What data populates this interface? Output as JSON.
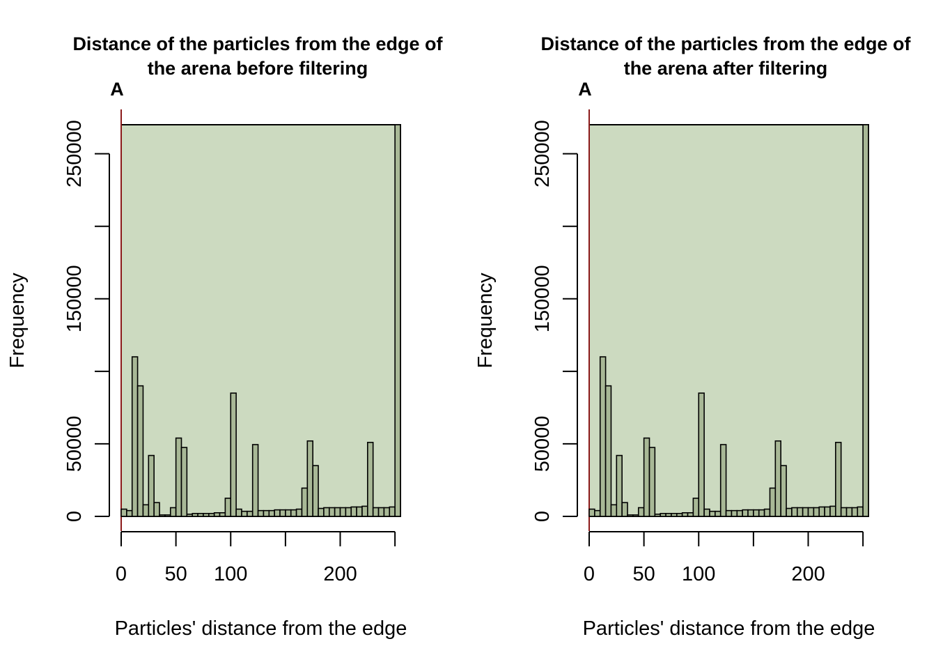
{
  "colors": {
    "panel_background": "#ccdac0",
    "bar_fill": "#a8b896",
    "bar_stroke": "#000000",
    "zero_line": "#8b1a1a"
  },
  "chart_data": [
    {
      "type": "bar",
      "panel_letter": "A",
      "title": [
        "Distance of the particles from the edge of",
        "the arena before filtering"
      ],
      "xlabel": "Particles' distance from the edge",
      "ylabel": "Frequency",
      "bin_width": 5,
      "x_start": 0,
      "xlim": [
        0,
        255
      ],
      "ylim": [
        0,
        270000
      ],
      "x_ticks": [
        0,
        50,
        100,
        150,
        200,
        250
      ],
      "x_tick_labels": [
        "0",
        "50",
        "100",
        "",
        "200",
        ""
      ],
      "y_ticks": [
        0,
        50000,
        100000,
        150000,
        200000,
        250000
      ],
      "y_tick_labels": [
        "0",
        "50000",
        "",
        "150000",
        "",
        "250000"
      ],
      "values": [
        5000,
        4000,
        110000,
        90000,
        8000,
        42000,
        9500,
        1000,
        1000,
        6000,
        54000,
        47500,
        1500,
        2000,
        2000,
        2000,
        2000,
        2500,
        2500,
        12500,
        85000,
        5000,
        3500,
        3500,
        49500,
        4000,
        4000,
        4000,
        4500,
        4500,
        4500,
        4500,
        5000,
        19500,
        52000,
        35000,
        5500,
        6000,
        6000,
        6000,
        6000,
        6000,
        6500,
        6500,
        7000,
        51000,
        6000,
        6000,
        6000,
        6500,
        270000
      ]
    },
    {
      "type": "bar",
      "panel_letter": "A",
      "title": [
        "Distance of the particles from the edge of",
        "the arena after filtering"
      ],
      "xlabel": "Particles' distance from the edge",
      "ylabel": "Frequency",
      "bin_width": 5,
      "x_start": 0,
      "xlim": [
        0,
        255
      ],
      "ylim": [
        0,
        270000
      ],
      "x_ticks": [
        0,
        50,
        100,
        150,
        200,
        250
      ],
      "x_tick_labels": [
        "0",
        "50",
        "100",
        "",
        "200",
        ""
      ],
      "y_ticks": [
        0,
        50000,
        100000,
        150000,
        200000,
        250000
      ],
      "y_tick_labels": [
        "0",
        "50000",
        "",
        "150000",
        "",
        "250000"
      ],
      "values": [
        5000,
        4000,
        110000,
        90000,
        8000,
        42000,
        9500,
        1000,
        1000,
        6000,
        54000,
        47500,
        1500,
        2000,
        2000,
        2000,
        2000,
        2500,
        2500,
        12500,
        85000,
        5000,
        3500,
        3500,
        49500,
        4000,
        4000,
        4000,
        4500,
        4500,
        4500,
        4500,
        5000,
        19500,
        52000,
        35000,
        5500,
        6000,
        6000,
        6000,
        6000,
        6000,
        6500,
        6500,
        7000,
        51000,
        6000,
        6000,
        6000,
        6500,
        270000
      ]
    }
  ]
}
